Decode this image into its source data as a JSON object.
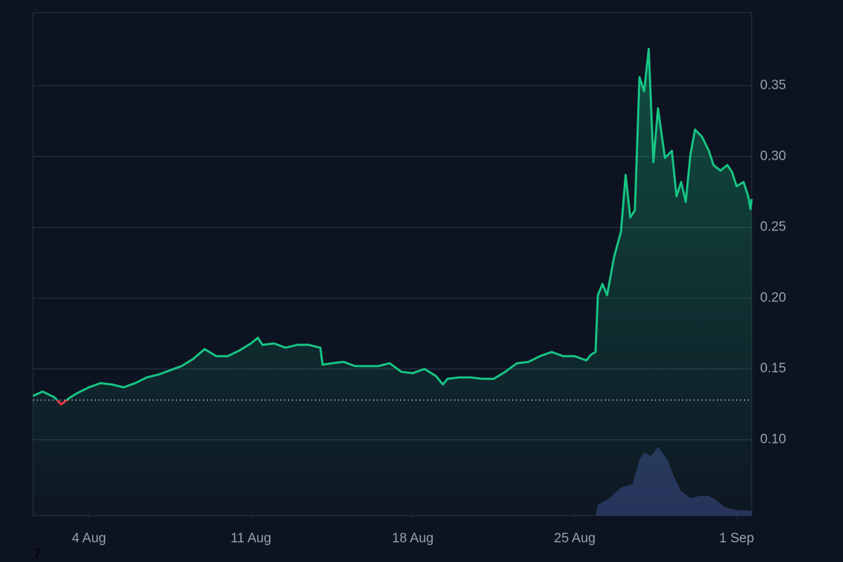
{
  "chart_data": {
    "type": "line",
    "xlim": [
      1.58,
      32.65
    ],
    "xticks": [
      {
        "value": 4,
        "label": "4 Aug"
      },
      {
        "value": 11,
        "label": "11 Aug"
      },
      {
        "value": 18,
        "label": "18 Aug"
      },
      {
        "value": 25,
        "label": "25 Aug"
      },
      {
        "value": 32,
        "label": "1 Sep"
      }
    ],
    "ylim": [
      0.0464,
      0.4016
    ],
    "yticks": [
      {
        "value": 0.1,
        "label": "0.10"
      },
      0.15,
      {
        "value": 0.2,
        "label": "0.20"
      },
      0.25,
      {
        "value": 0.3,
        "label": "0.30"
      },
      0.35
    ],
    "grid": true,
    "baseline": 0.128,
    "series": [
      {
        "color": "#16c784",
        "down_color": "#ea3943",
        "x": [
          1.58,
          2.0,
          2.5,
          2.8,
          3.2,
          3.5,
          4.0,
          4.5,
          5.0,
          5.5,
          6.0,
          6.5,
          7.0,
          7.5,
          8.0,
          8.5,
          9.0,
          9.5,
          10.0,
          10.5,
          11.0,
          11.3,
          11.5,
          12.0,
          12.5,
          13.0,
          13.5,
          14.0,
          14.1,
          14.5,
          15.0,
          15.5,
          16.0,
          16.5,
          17.0,
          17.5,
          18.0,
          18.5,
          19.0,
          19.3,
          19.5,
          20.0,
          20.5,
          21.0,
          21.5,
          22.0,
          22.5,
          23.0,
          23.5,
          24.0,
          24.5,
          25.0,
          25.5,
          25.7,
          25.9,
          26.0,
          26.2,
          26.4,
          26.7,
          27.0,
          27.2,
          27.4,
          27.6,
          27.8,
          28.0,
          28.2,
          28.4,
          28.6,
          28.9,
          29.2,
          29.4,
          29.6,
          29.8,
          30.0,
          30.2,
          30.5,
          30.8,
          31.0,
          31.3,
          31.6,
          31.8,
          32.0,
          32.3,
          32.5,
          32.6,
          32.65
        ],
        "values": [
          0.131,
          0.134,
          0.13,
          0.125,
          0.13,
          0.133,
          0.137,
          0.14,
          0.139,
          0.137,
          0.14,
          0.144,
          0.146,
          0.149,
          0.152,
          0.157,
          0.164,
          0.159,
          0.159,
          0.163,
          0.168,
          0.172,
          0.167,
          0.168,
          0.165,
          0.167,
          0.167,
          0.165,
          0.153,
          0.154,
          0.155,
          0.152,
          0.152,
          0.152,
          0.154,
          0.148,
          0.147,
          0.15,
          0.145,
          0.139,
          0.143,
          0.144,
          0.144,
          0.143,
          0.143,
          0.148,
          0.154,
          0.155,
          0.159,
          0.162,
          0.159,
          0.159,
          0.156,
          0.16,
          0.162,
          0.202,
          0.21,
          0.202,
          0.229,
          0.247,
          0.287,
          0.257,
          0.262,
          0.356,
          0.346,
          0.376,
          0.296,
          0.334,
          0.299,
          0.304,
          0.272,
          0.282,
          0.268,
          0.301,
          0.319,
          0.314,
          0.304,
          0.294,
          0.29,
          0.294,
          0.289,
          0.279,
          0.282,
          0.272,
          0.263,
          0.27
        ]
      }
    ],
    "volume": {
      "color": "#2b3560",
      "vlim": [
        0,
        100
      ],
      "x": [
        25.9,
        26.0,
        26.5,
        27.0,
        27.5,
        27.8,
        28.0,
        28.3,
        28.6,
        29.0,
        29.3,
        29.6,
        30.0,
        30.4,
        30.8,
        31.2,
        31.5,
        32.0,
        32.65
      ],
      "values": [
        0,
        15,
        25,
        40,
        45,
        80,
        90,
        85,
        98,
        80,
        55,
        35,
        25,
        28,
        28,
        20,
        12,
        8,
        7
      ]
    },
    "corner_label": "7"
  }
}
